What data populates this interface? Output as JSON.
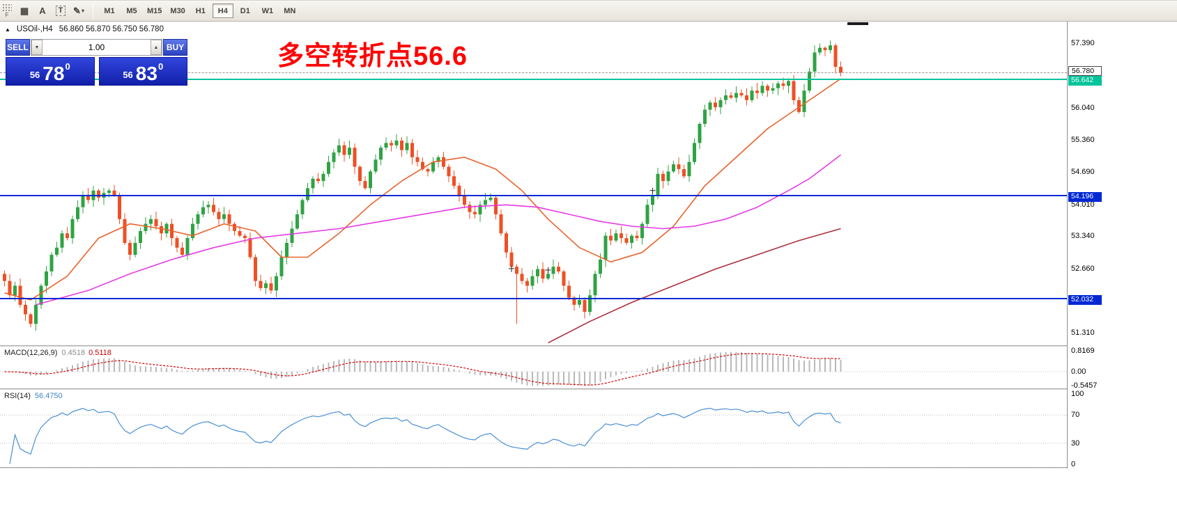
{
  "toolbar": {
    "tools": [
      {
        "name": "pattern-grid-tool",
        "glyph": "▦"
      },
      {
        "name": "text-label-tool",
        "glyph": "A"
      },
      {
        "name": "text-box-tool",
        "glyph": "T",
        "boxed": true
      },
      {
        "name": "drawing-objects-tool",
        "glyph": "✎",
        "arrow": "▾"
      }
    ],
    "handle_label": "F",
    "timeframes": [
      "M1",
      "M5",
      "M15",
      "M30",
      "H1",
      "H4",
      "D1",
      "W1",
      "MN"
    ],
    "active_timeframe": "H4"
  },
  "chart_header": {
    "collapse_glyph": "▲",
    "symbol": "USOil-,H4",
    "ohlc": "56.860 56.870 56.750 56.780"
  },
  "trade_panel": {
    "sell_label": "SELL",
    "buy_label": "BUY",
    "lot_value": "1.00",
    "spin_up_glyph": "▲",
    "spin_down_glyph": "▼",
    "sell_price": {
      "small": "56",
      "big": "78",
      "sup": "0"
    },
    "buy_price": {
      "small": "56",
      "big": "83",
      "sup": "0"
    }
  },
  "annotation": {
    "text": "多空转折点56.6",
    "color": "#ff0000"
  },
  "price_axis": {
    "plain_labels": [
      "57.390",
      "56.040",
      "55.360",
      "54.690",
      "54.010",
      "53.340",
      "52.660",
      "51.310"
    ],
    "bid": {
      "price": 56.78,
      "label": "56.780"
    },
    "lines": [
      {
        "price": 56.642,
        "label": "56.642",
        "color": "#00c49a"
      },
      {
        "price": 54.196,
        "label": "54.196",
        "color": "#0028d4"
      },
      {
        "price": 52.032,
        "label": "52.032",
        "color": "#0028d4"
      }
    ]
  },
  "chart_data": {
    "type": "candlestick",
    "symbol": "USOil-",
    "timeframe": "H4",
    "ylim": [
      51.05,
      57.85
    ],
    "up_color": "#2fa344",
    "down_color": "#ee4f25",
    "closes": [
      52.4,
      52.1,
      52.3,
      51.9,
      51.7,
      51.5,
      51.9,
      52.3,
      52.6,
      52.95,
      53.1,
      53.4,
      53.3,
      53.7,
      53.95,
      54.2,
      54.1,
      54.3,
      54.15,
      54.25,
      54.3,
      54.2,
      53.7,
      53.2,
      52.95,
      53.2,
      53.45,
      53.6,
      53.7,
      53.55,
      53.4,
      53.6,
      53.3,
      53.1,
      52.95,
      53.3,
      53.6,
      53.8,
      53.95,
      54.0,
      53.85,
      53.7,
      53.8,
      53.6,
      53.45,
      53.35,
      53.3,
      52.9,
      52.4,
      52.25,
      52.35,
      52.2,
      52.5,
      52.9,
      53.2,
      53.5,
      53.8,
      54.1,
      54.35,
      54.55,
      54.5,
      54.65,
      54.9,
      55.1,
      55.25,
      55.05,
      55.2,
      54.8,
      54.5,
      54.35,
      54.7,
      54.95,
      55.2,
      55.3,
      55.25,
      55.35,
      55.15,
      55.3,
      55.0,
      54.9,
      54.75,
      54.7,
      54.9,
      55.0,
      54.8,
      54.6,
      54.4,
      54.2,
      54.0,
      53.85,
      53.8,
      54.0,
      54.1,
      54.15,
      53.8,
      53.4,
      53.0,
      52.7,
      52.55,
      52.4,
      52.3,
      52.5,
      52.65,
      52.45,
      52.55,
      52.7,
      52.6,
      52.3,
      52.05,
      51.9,
      52.0,
      51.75,
      52.1,
      52.55,
      52.85,
      53.35,
      53.25,
      53.4,
      53.3,
      53.2,
      53.35,
      53.3,
      53.6,
      54.0,
      54.2,
      54.65,
      54.5,
      54.7,
      54.85,
      54.75,
      54.6,
      54.9,
      55.3,
      55.7,
      56.0,
      56.15,
      56.05,
      56.2,
      56.3,
      56.25,
      56.35,
      56.3,
      56.2,
      56.4,
      56.35,
      56.5,
      56.4,
      56.45,
      56.55,
      56.5,
      56.6,
      56.2,
      55.95,
      56.4,
      56.8,
      57.2,
      57.3,
      57.25,
      57.35,
      56.9,
      56.78
    ],
    "special_wicks": [
      {
        "index": 98,
        "low_to": 51.5
      }
    ],
    "cross_markers": [
      {
        "index": 97,
        "price": 52.66
      },
      {
        "index": 104,
        "price": 52.63
      },
      {
        "index": 124,
        "price": 54.3
      }
    ],
    "moving_averages": [
      {
        "name": "fast-ma",
        "color": "#e8632b",
        "points": [
          [
            0,
            52.15
          ],
          [
            5,
            52.0
          ],
          [
            12,
            52.5
          ],
          [
            18,
            53.3
          ],
          [
            24,
            53.6
          ],
          [
            30,
            53.5
          ],
          [
            36,
            53.35
          ],
          [
            42,
            53.6
          ],
          [
            48,
            53.45
          ],
          [
            53,
            52.9
          ],
          [
            58,
            52.9
          ],
          [
            64,
            53.4
          ],
          [
            70,
            54.0
          ],
          [
            76,
            54.5
          ],
          [
            82,
            54.9
          ],
          [
            88,
            55.0
          ],
          [
            94,
            54.75
          ],
          [
            99,
            54.3
          ],
          [
            104,
            53.7
          ],
          [
            110,
            53.1
          ],
          [
            116,
            52.8
          ],
          [
            122,
            53.0
          ],
          [
            128,
            53.55
          ],
          [
            134,
            54.4
          ],
          [
            140,
            55.0
          ],
          [
            146,
            55.6
          ],
          [
            152,
            56.05
          ],
          [
            156,
            56.35
          ],
          [
            160,
            56.65
          ]
        ]
      },
      {
        "name": "medium-ma",
        "color": "#e53ae5",
        "points": [
          [
            6,
            51.9
          ],
          [
            16,
            52.2
          ],
          [
            24,
            52.55
          ],
          [
            32,
            52.85
          ],
          [
            40,
            53.1
          ],
          [
            48,
            53.3
          ],
          [
            56,
            53.4
          ],
          [
            64,
            53.5
          ],
          [
            72,
            53.65
          ],
          [
            80,
            53.8
          ],
          [
            88,
            53.95
          ],
          [
            96,
            54.0
          ],
          [
            102,
            53.95
          ],
          [
            108,
            53.8
          ],
          [
            114,
            53.65
          ],
          [
            120,
            53.55
          ],
          [
            126,
            53.5
          ],
          [
            132,
            53.55
          ],
          [
            138,
            53.7
          ],
          [
            144,
            53.95
          ],
          [
            150,
            54.3
          ],
          [
            154,
            54.55
          ],
          [
            157,
            54.8
          ],
          [
            160,
            55.05
          ]
        ]
      },
      {
        "name": "slow-ma",
        "color": "#aa2e3c",
        "points": [
          [
            104,
            51.1
          ],
          [
            112,
            51.55
          ],
          [
            120,
            51.95
          ],
          [
            128,
            52.3
          ],
          [
            136,
            52.65
          ],
          [
            144,
            52.95
          ],
          [
            152,
            53.25
          ],
          [
            160,
            53.5
          ]
        ]
      }
    ],
    "macd": {
      "label": "MACD(12,26,9)",
      "value1": "0.4518",
      "value2": "0.5118",
      "params": [
        12,
        26,
        9
      ],
      "histogram_color": "#b8b8b8",
      "signal_color": "#d40000",
      "axis": [
        {
          "text": "0.8169",
          "v": 0.8169
        },
        {
          "text": "0.00",
          "v": 0
        },
        {
          "text": "-0.5457",
          "v": -0.5457
        }
      ],
      "axis_max": 0.8169
    },
    "rsi": {
      "label": "RSI(14)",
      "value": "56.4750",
      "period": 14,
      "line_color": "#4a8fd4",
      "levels": [
        70,
        30
      ],
      "axis": [
        {
          "text": "100",
          "v": 100
        },
        {
          "text": "70",
          "v": 70
        },
        {
          "text": "30",
          "v": 30
        },
        {
          "text": "0",
          "v": 0
        }
      ]
    }
  }
}
